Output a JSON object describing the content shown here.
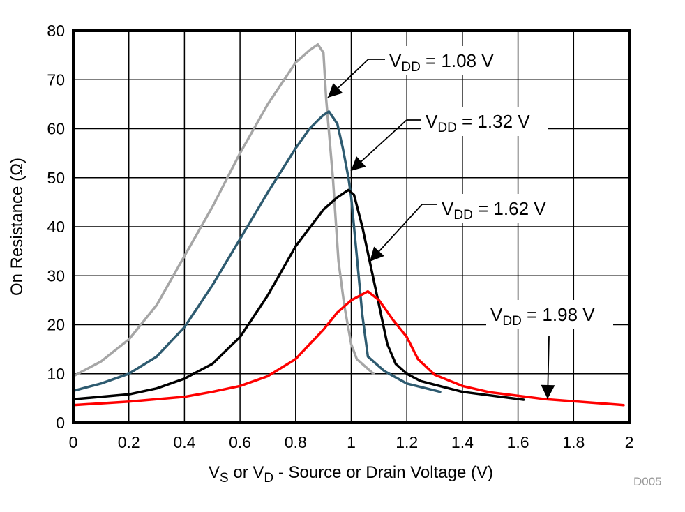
{
  "chart_data": {
    "type": "line",
    "title": "",
    "xlabel": {
      "main1": "V",
      "sub1": "S",
      "main2": " or V",
      "sub2": "D",
      "main3": " - Source or Drain Voltage (V)"
    },
    "ylabel": "On Resistance (Ω)",
    "xlim": [
      0,
      2
    ],
    "ylim": [
      0,
      80
    ],
    "xticks": [
      "0",
      "0.2",
      "0.4",
      "0.6",
      "0.8",
      "1",
      "1.2",
      "1.4",
      "1.6",
      "1.8",
      "2"
    ],
    "yticks": [
      "0",
      "10",
      "20",
      "30",
      "40",
      "50",
      "60",
      "70",
      "80"
    ],
    "grid": true,
    "figure_code": "D005",
    "series": [
      {
        "name": "VDD = 1.08 V",
        "label": {
          "v": "V",
          "sub": "DD",
          "rest": " = 1.08 V"
        },
        "color": "#a6a6a6",
        "x": [
          0,
          0.1,
          0.2,
          0.3,
          0.4,
          0.5,
          0.6,
          0.7,
          0.8,
          0.85,
          0.88,
          0.9,
          0.91,
          0.934,
          0.954,
          0.975,
          1.0,
          1.02,
          1.08
        ],
        "y": [
          9.5,
          12.5,
          17,
          24,
          34,
          44,
          55,
          65,
          73.5,
          76,
          77.2,
          75.5,
          66,
          50,
          33,
          24,
          16,
          13,
          10
        ]
      },
      {
        "name": "VDD = 1.32 V",
        "label": {
          "v": "V",
          "sub": "DD",
          "rest": " = 1.32 V"
        },
        "color": "#2e5b70",
        "x": [
          0,
          0.1,
          0.2,
          0.3,
          0.4,
          0.5,
          0.6,
          0.7,
          0.8,
          0.85,
          0.9,
          0.92,
          0.95,
          0.97,
          0.99,
          1.0,
          1.02,
          1.04,
          1.06,
          1.08,
          1.12,
          1.2,
          1.32
        ],
        "y": [
          6.5,
          8,
          10,
          13.5,
          19.5,
          28,
          37.5,
          47,
          56,
          60,
          62.8,
          63.5,
          61,
          56,
          50,
          46,
          34,
          22,
          13.5,
          12.5,
          10.5,
          8,
          6.3
        ]
      },
      {
        "name": "VDD = 1.62 V",
        "label": {
          "v": "V",
          "sub": "DD",
          "rest": " = 1.62 V"
        },
        "color": "#000000",
        "x": [
          0,
          0.2,
          0.3,
          0.4,
          0.5,
          0.6,
          0.7,
          0.8,
          0.9,
          0.95,
          0.99,
          1.01,
          1.04,
          1.07,
          1.1,
          1.13,
          1.16,
          1.2,
          1.25,
          1.4,
          1.62
        ],
        "y": [
          4.8,
          5.8,
          7,
          9,
          12,
          17.5,
          26,
          36,
          43.5,
          46,
          47.5,
          46.5,
          40,
          32,
          24,
          16,
          12,
          10,
          8.5,
          6.3,
          4.7
        ]
      },
      {
        "name": "VDD = 1.98 V",
        "label": {
          "v": "V",
          "sub": "DD",
          "rest": " = 1.98 V"
        },
        "color": "#ff0000",
        "x": [
          0,
          0.2,
          0.4,
          0.5,
          0.6,
          0.7,
          0.8,
          0.9,
          0.95,
          1.0,
          1.06,
          1.1,
          1.15,
          1.2,
          1.24,
          1.3,
          1.4,
          1.5,
          1.7,
          1.98
        ],
        "y": [
          3.6,
          4.3,
          5.3,
          6.3,
          7.5,
          9.5,
          13,
          19,
          22.5,
          25,
          26.8,
          25,
          21,
          17.5,
          13,
          9.8,
          7.5,
          6.2,
          4.8,
          3.6
        ]
      }
    ]
  }
}
